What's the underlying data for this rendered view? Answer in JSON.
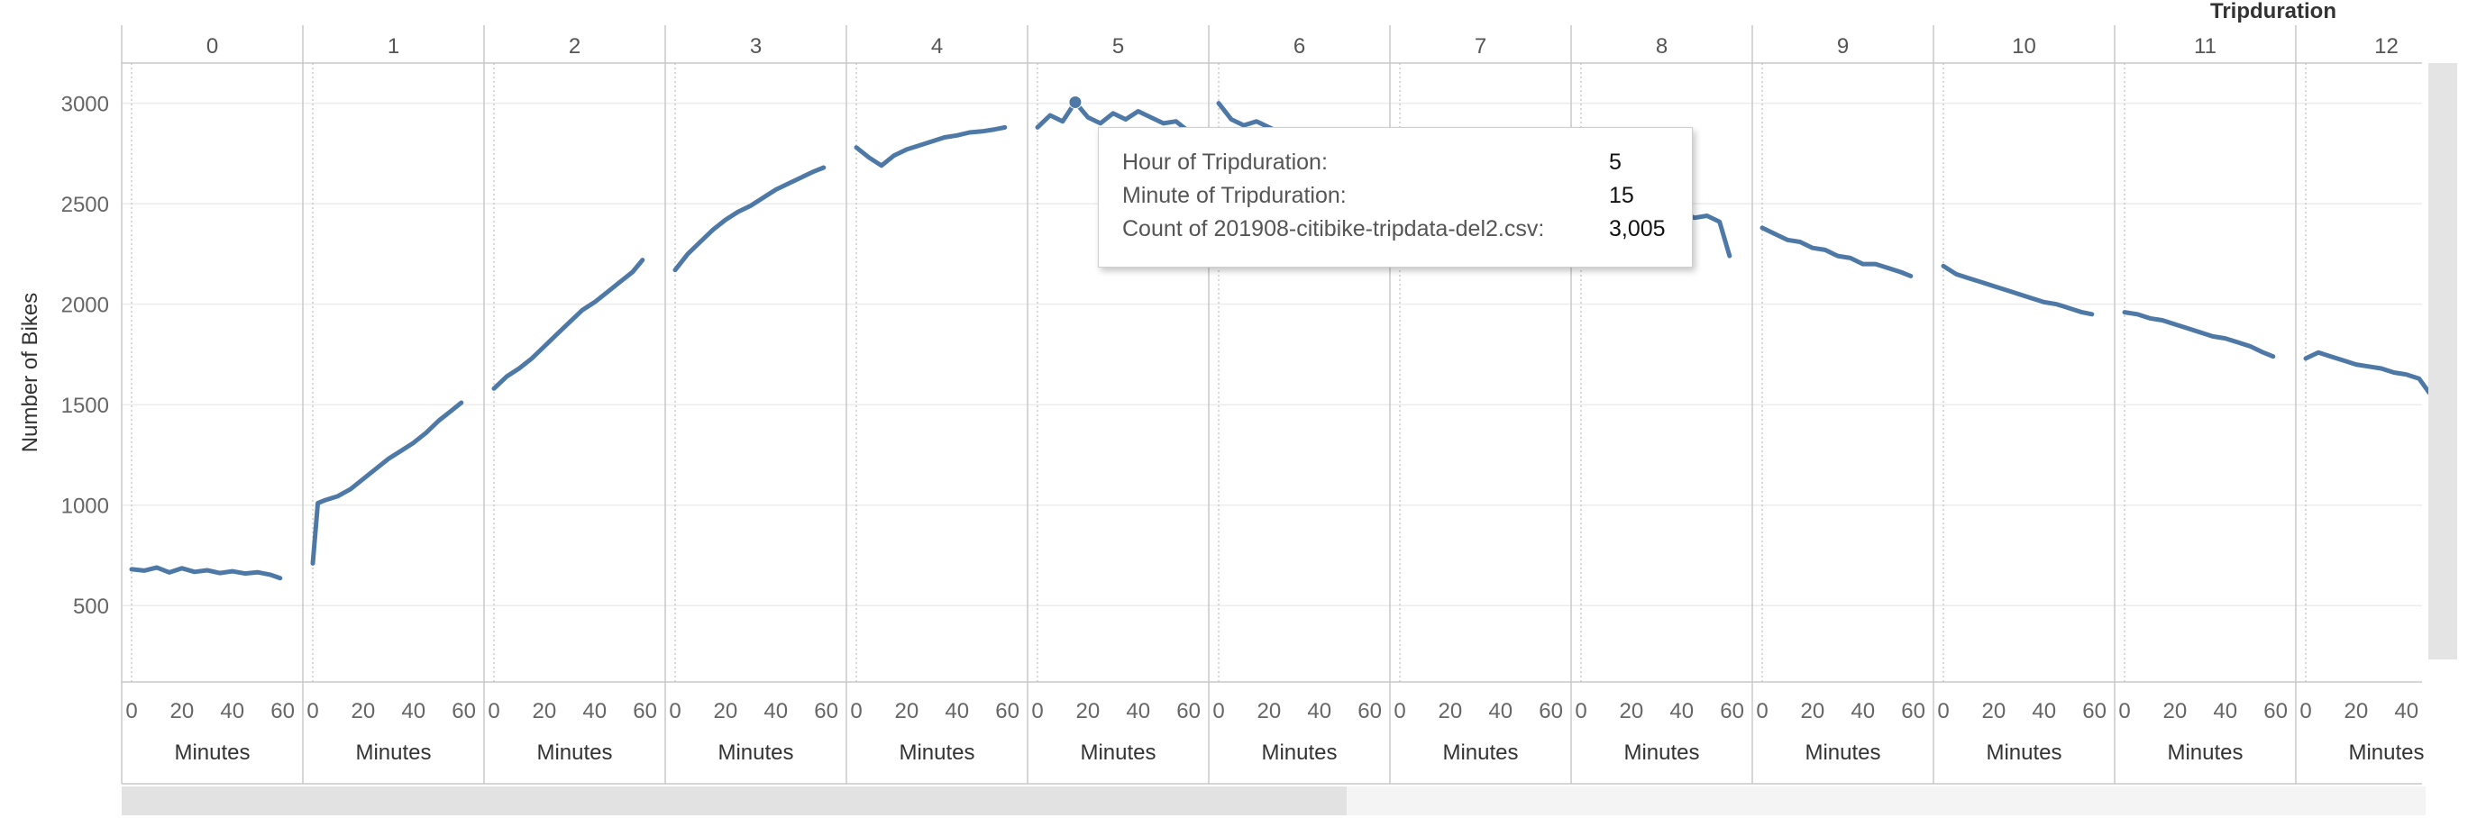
{
  "header": {
    "title": "Tripduration"
  },
  "chart_data": {
    "type": "line",
    "ylabel": "Number of Bikes",
    "xlabel": "Minutes",
    "ylim": [
      120,
      3200
    ],
    "y_ticks": [
      500,
      1000,
      1500,
      2000,
      2500,
      3000
    ],
    "x_ticks": [
      0,
      20,
      40,
      60
    ],
    "panel_xlim": [
      0,
      63
    ],
    "line_color": "#4e79a7",
    "grid": true,
    "panels": [
      {
        "hour": "0",
        "x_ticks": [
          "0",
          "20",
          "40",
          "60"
        ],
        "points": [
          [
            0,
            681
          ],
          [
            5,
            674
          ],
          [
            10,
            690
          ],
          [
            15,
            665
          ],
          [
            20,
            686
          ],
          [
            25,
            668
          ],
          [
            30,
            676
          ],
          [
            35,
            662
          ],
          [
            40,
            671
          ],
          [
            45,
            660
          ],
          [
            50,
            666
          ],
          [
            55,
            654
          ],
          [
            59,
            637
          ]
        ]
      },
      {
        "hour": "1",
        "x_ticks": [
          "0",
          "20",
          "40",
          "60"
        ],
        "points": [
          [
            0,
            710
          ],
          [
            2,
            1010
          ],
          [
            5,
            1025
          ],
          [
            10,
            1045
          ],
          [
            15,
            1080
          ],
          [
            20,
            1130
          ],
          [
            25,
            1180
          ],
          [
            30,
            1230
          ],
          [
            35,
            1270
          ],
          [
            40,
            1310
          ],
          [
            45,
            1360
          ],
          [
            50,
            1420
          ],
          [
            55,
            1470
          ],
          [
            59,
            1510
          ]
        ]
      },
      {
        "hour": "2",
        "x_ticks": [
          "0",
          "20",
          "40",
          "60"
        ],
        "points": [
          [
            0,
            1580
          ],
          [
            5,
            1640
          ],
          [
            10,
            1680
          ],
          [
            15,
            1730
          ],
          [
            20,
            1790
          ],
          [
            25,
            1850
          ],
          [
            30,
            1910
          ],
          [
            35,
            1970
          ],
          [
            40,
            2010
          ],
          [
            45,
            2060
          ],
          [
            50,
            2110
          ],
          [
            55,
            2160
          ],
          [
            59,
            2220
          ]
        ]
      },
      {
        "hour": "3",
        "x_ticks": [
          "0",
          "20",
          "40",
          "60"
        ],
        "points": [
          [
            0,
            2170
          ],
          [
            5,
            2250
          ],
          [
            10,
            2310
          ],
          [
            15,
            2370
          ],
          [
            20,
            2420
          ],
          [
            25,
            2460
          ],
          [
            30,
            2490
          ],
          [
            35,
            2530
          ],
          [
            40,
            2570
          ],
          [
            45,
            2600
          ],
          [
            50,
            2630
          ],
          [
            55,
            2660
          ],
          [
            59,
            2680
          ]
        ]
      },
      {
        "hour": "4",
        "x_ticks": [
          "0",
          "20",
          "40",
          "60"
        ],
        "points": [
          [
            0,
            2780
          ],
          [
            5,
            2730
          ],
          [
            10,
            2690
          ],
          [
            15,
            2740
          ],
          [
            20,
            2770
          ],
          [
            25,
            2790
          ],
          [
            30,
            2810
          ],
          [
            35,
            2830
          ],
          [
            40,
            2840
          ],
          [
            45,
            2855
          ],
          [
            50,
            2860
          ],
          [
            55,
            2870
          ],
          [
            59,
            2880
          ]
        ]
      },
      {
        "hour": "5",
        "x_ticks": [
          "0",
          "20",
          "40",
          "60"
        ],
        "points": [
          [
            0,
            2880
          ],
          [
            5,
            2940
          ],
          [
            10,
            2910
          ],
          [
            15,
            3005
          ],
          [
            20,
            2930
          ],
          [
            25,
            2900
          ],
          [
            30,
            2950
          ],
          [
            35,
            2920
          ],
          [
            40,
            2960
          ],
          [
            45,
            2930
          ],
          [
            50,
            2900
          ],
          [
            55,
            2910
          ],
          [
            59,
            2870
          ]
        ]
      },
      {
        "hour": "6",
        "x_ticks": [
          "0",
          "20",
          "40",
          "60"
        ],
        "points": [
          [
            0,
            3000
          ],
          [
            5,
            2920
          ],
          [
            10,
            2890
          ],
          [
            15,
            2910
          ],
          [
            20,
            2880
          ],
          [
            25,
            2850
          ],
          [
            30,
            2870
          ],
          [
            35,
            2840
          ],
          [
            40,
            2820
          ]
        ]
      },
      {
        "hour": "7",
        "x_ticks": [
          "0",
          "20",
          "40",
          "60"
        ],
        "points": []
      },
      {
        "hour": "8",
        "x_ticks": [
          "0",
          "20",
          "40",
          "60"
        ],
        "points": [
          [
            40,
            2460
          ],
          [
            45,
            2430
          ],
          [
            50,
            2440
          ],
          [
            55,
            2410
          ],
          [
            59,
            2240
          ]
        ]
      },
      {
        "hour": "9",
        "x_ticks": [
          "0",
          "20",
          "40",
          "60"
        ],
        "points": [
          [
            0,
            2380
          ],
          [
            5,
            2350
          ],
          [
            10,
            2320
          ],
          [
            15,
            2310
          ],
          [
            20,
            2280
          ],
          [
            25,
            2270
          ],
          [
            30,
            2240
          ],
          [
            35,
            2230
          ],
          [
            40,
            2200
          ],
          [
            45,
            2200
          ],
          [
            50,
            2180
          ],
          [
            55,
            2160
          ],
          [
            59,
            2140
          ]
        ]
      },
      {
        "hour": "10",
        "x_ticks": [
          "0",
          "20",
          "40",
          "60"
        ],
        "points": [
          [
            0,
            2190
          ],
          [
            5,
            2150
          ],
          [
            10,
            2130
          ],
          [
            15,
            2110
          ],
          [
            20,
            2090
          ],
          [
            25,
            2070
          ],
          [
            30,
            2050
          ],
          [
            35,
            2030
          ],
          [
            40,
            2010
          ],
          [
            45,
            2000
          ],
          [
            50,
            1980
          ],
          [
            55,
            1960
          ],
          [
            59,
            1950
          ]
        ]
      },
      {
        "hour": "11",
        "x_ticks": [
          "0",
          "20",
          "40",
          "60"
        ],
        "points": [
          [
            0,
            1960
          ],
          [
            5,
            1950
          ],
          [
            10,
            1930
          ],
          [
            15,
            1920
          ],
          [
            20,
            1900
          ],
          [
            25,
            1880
          ],
          [
            30,
            1860
          ],
          [
            35,
            1840
          ],
          [
            40,
            1830
          ],
          [
            45,
            1810
          ],
          [
            50,
            1790
          ],
          [
            55,
            1760
          ],
          [
            59,
            1740
          ]
        ]
      },
      {
        "hour": "12",
        "x_ticks": [
          "0",
          "20",
          "40"
        ],
        "points": [
          [
            0,
            1730
          ],
          [
            5,
            1760
          ],
          [
            10,
            1740
          ],
          [
            15,
            1720
          ],
          [
            20,
            1700
          ],
          [
            25,
            1690
          ],
          [
            30,
            1680
          ],
          [
            35,
            1660
          ],
          [
            40,
            1650
          ],
          [
            45,
            1630
          ],
          [
            49,
            1560
          ]
        ]
      }
    ],
    "highlight": {
      "hour": "5",
      "minute": 15,
      "value": 3005
    }
  },
  "tooltip": {
    "rows": [
      {
        "label": "Hour of Tripduration:",
        "value": "5"
      },
      {
        "label": "Minute of Tripduration:",
        "value": "15"
      },
      {
        "label": "Count of 201908-citibike-tripdata-del2.csv:",
        "value": "3,005"
      }
    ]
  }
}
